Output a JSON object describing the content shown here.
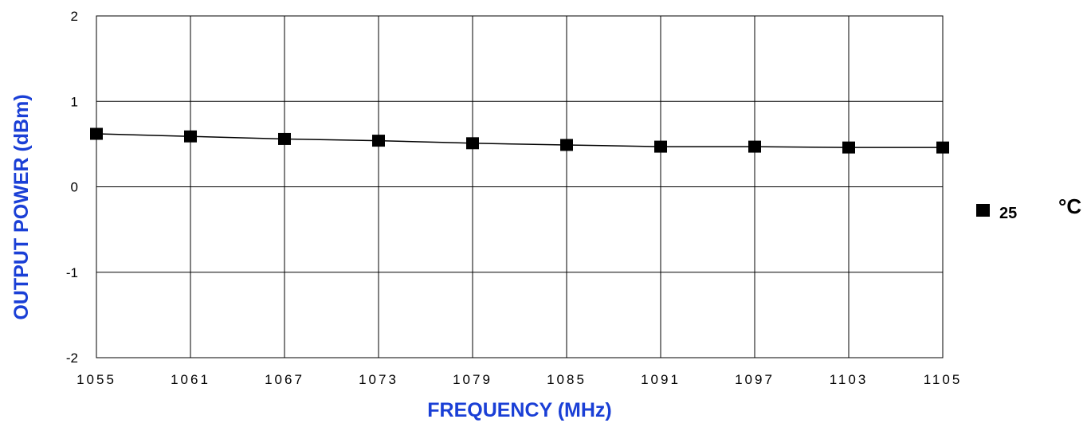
{
  "chart_data": {
    "type": "line",
    "xlabel": "FREQUENCY (MHz)",
    "ylabel": "OUTPUT POWER (dBm)",
    "x": [
      "1055",
      "1061",
      "1067",
      "1073",
      "1079",
      "1085",
      "1091",
      "1097",
      "1103",
      "1105"
    ],
    "y_ticks": [
      "2",
      "1",
      "0",
      "-1",
      "-2"
    ],
    "ylim": [
      -2,
      2
    ],
    "grid": true,
    "legend_placement": "right",
    "series": [
      {
        "name": "25",
        "unit": "°C",
        "values": [
          0.62,
          0.59,
          0.56,
          0.54,
          0.51,
          0.49,
          0.47,
          0.47,
          0.46,
          0.46
        ]
      }
    ]
  },
  "colors": {
    "axis_title": "#1a3fd6",
    "grid": "#000000",
    "series": "#000000"
  }
}
